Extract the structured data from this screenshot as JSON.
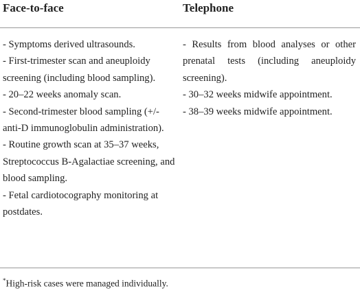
{
  "table": {
    "headers": [
      "Face-to-face",
      "Telephone"
    ],
    "columns": [
      [
        "- Symptoms derived ultrasounds.",
        "- First-trimester scan and aneuploidy screening (including blood sampling).",
        "- 20–22 weeks anomaly scan.",
        "- Second-trimester blood sampling (+/- anti-D immunoglobulin administration).",
        "- Routine growth scan at 35–37 weeks, Streptococcus B-Agalactiae screening, and blood sampling.",
        "- Fetal cardiotocography monitoring at postdates."
      ],
      [
        "- Results from blood analyses or other prenatal tests (including aneuploidy screening).",
        "- 30–32 weeks midwife appointment.",
        "- 38–39 weeks midwife appointment."
      ]
    ]
  },
  "footnote": {
    "marker": "*",
    "text": "High-risk cases were managed individually."
  }
}
